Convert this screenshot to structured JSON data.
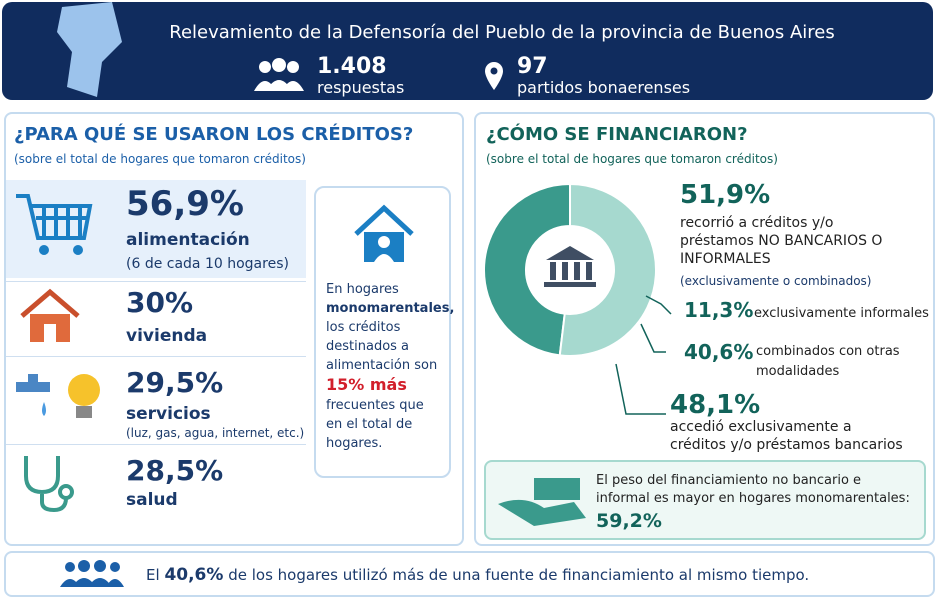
{
  "header": {
    "title": "Relevamiento de la Defensoría del Pueblo de la provincia de Buenos Aires",
    "stats": [
      {
        "value": "1.408",
        "label": "respuestas"
      },
      {
        "value": "97",
        "label": "partidos bonaerenses"
      }
    ]
  },
  "uses": {
    "title": "¿PARA QUÉ SE USARON LOS CRÉDITOS?",
    "subtitle": "(sobre el total de hogares que tomaron créditos)",
    "items": [
      {
        "percent": "56,9%",
        "label": "alimentación",
        "note": "(6 de cada 10 hogares)"
      },
      {
        "percent": "30%",
        "label": "vivienda"
      },
      {
        "percent": "29,5%",
        "label": "servicios",
        "note": "(luz, gas, agua, internet, etc.)"
      },
      {
        "percent": "28,5%",
        "label": "salud"
      }
    ],
    "callout": [
      "En hogares",
      "monomarentales,",
      "los créditos destinados a alimentación son",
      "15% más",
      "frecuentes que en el total de hogares."
    ]
  },
  "financing": {
    "title": "¿CÓMO SE FINANCIARON?",
    "subtitle": "(sobre el total de hogares que tomaron créditos)",
    "main": {
      "value": 51.9,
      "label": "51,9%"
    },
    "main_text": "recorrió a créditos y/o préstamos NO BANCARIOS O INFORMALES",
    "main_note": "(exclusivamente o combinados)",
    "breakdown": [
      {
        "percent": "11,3%",
        "label": "exclusivamente informales"
      },
      {
        "percent": "40,6%",
        "label": "combinados con otras modalidades"
      }
    ],
    "banking": {
      "value": 48.1,
      "label": "48,1%"
    },
    "banking_text": "accedió exclusivamente a créditos y/o préstamos bancarios",
    "note": {
      "text": "El peso del financiamiento no bancario e informal es mayor en hogares monomarentales:",
      "percent": "59,2%"
    }
  },
  "footer": [
    "El",
    "40,6%",
    "de los hogares utilizó más de una fuente de financiamiento al mismo tiempo."
  ]
}
